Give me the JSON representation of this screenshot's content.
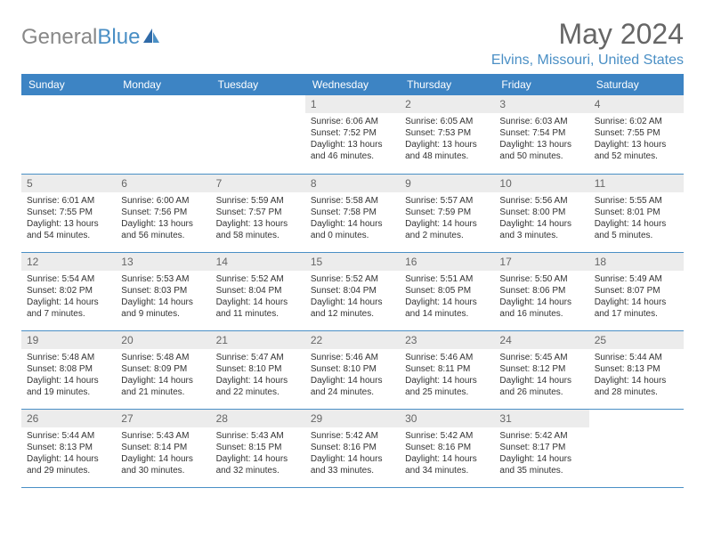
{
  "logo": {
    "text1": "General",
    "text2": "Blue"
  },
  "title": "May 2024",
  "location": "Elvins, Missouri, United States",
  "colors": {
    "header_bg": "#3d84c4",
    "header_text": "#ffffff",
    "accent": "#4a8fc5",
    "daynum_bg": "#ececec",
    "daynum_text": "#666666",
    "body_text": "#333333",
    "title_text": "#666666",
    "logo_gray": "#888888"
  },
  "weekdays": [
    "Sunday",
    "Monday",
    "Tuesday",
    "Wednesday",
    "Thursday",
    "Friday",
    "Saturday"
  ],
  "weeks": [
    [
      null,
      null,
      null,
      {
        "n": "1",
        "sr": "6:06 AM",
        "ss": "7:52 PM",
        "dl": "13 hours and 46 minutes."
      },
      {
        "n": "2",
        "sr": "6:05 AM",
        "ss": "7:53 PM",
        "dl": "13 hours and 48 minutes."
      },
      {
        "n": "3",
        "sr": "6:03 AM",
        "ss": "7:54 PM",
        "dl": "13 hours and 50 minutes."
      },
      {
        "n": "4",
        "sr": "6:02 AM",
        "ss": "7:55 PM",
        "dl": "13 hours and 52 minutes."
      }
    ],
    [
      {
        "n": "5",
        "sr": "6:01 AM",
        "ss": "7:55 PM",
        "dl": "13 hours and 54 minutes."
      },
      {
        "n": "6",
        "sr": "6:00 AM",
        "ss": "7:56 PM",
        "dl": "13 hours and 56 minutes."
      },
      {
        "n": "7",
        "sr": "5:59 AM",
        "ss": "7:57 PM",
        "dl": "13 hours and 58 minutes."
      },
      {
        "n": "8",
        "sr": "5:58 AM",
        "ss": "7:58 PM",
        "dl": "14 hours and 0 minutes."
      },
      {
        "n": "9",
        "sr": "5:57 AM",
        "ss": "7:59 PM",
        "dl": "14 hours and 2 minutes."
      },
      {
        "n": "10",
        "sr": "5:56 AM",
        "ss": "8:00 PM",
        "dl": "14 hours and 3 minutes."
      },
      {
        "n": "11",
        "sr": "5:55 AM",
        "ss": "8:01 PM",
        "dl": "14 hours and 5 minutes."
      }
    ],
    [
      {
        "n": "12",
        "sr": "5:54 AM",
        "ss": "8:02 PM",
        "dl": "14 hours and 7 minutes."
      },
      {
        "n": "13",
        "sr": "5:53 AM",
        "ss": "8:03 PM",
        "dl": "14 hours and 9 minutes."
      },
      {
        "n": "14",
        "sr": "5:52 AM",
        "ss": "8:04 PM",
        "dl": "14 hours and 11 minutes."
      },
      {
        "n": "15",
        "sr": "5:52 AM",
        "ss": "8:04 PM",
        "dl": "14 hours and 12 minutes."
      },
      {
        "n": "16",
        "sr": "5:51 AM",
        "ss": "8:05 PM",
        "dl": "14 hours and 14 minutes."
      },
      {
        "n": "17",
        "sr": "5:50 AM",
        "ss": "8:06 PM",
        "dl": "14 hours and 16 minutes."
      },
      {
        "n": "18",
        "sr": "5:49 AM",
        "ss": "8:07 PM",
        "dl": "14 hours and 17 minutes."
      }
    ],
    [
      {
        "n": "19",
        "sr": "5:48 AM",
        "ss": "8:08 PM",
        "dl": "14 hours and 19 minutes."
      },
      {
        "n": "20",
        "sr": "5:48 AM",
        "ss": "8:09 PM",
        "dl": "14 hours and 21 minutes."
      },
      {
        "n": "21",
        "sr": "5:47 AM",
        "ss": "8:10 PM",
        "dl": "14 hours and 22 minutes."
      },
      {
        "n": "22",
        "sr": "5:46 AM",
        "ss": "8:10 PM",
        "dl": "14 hours and 24 minutes."
      },
      {
        "n": "23",
        "sr": "5:46 AM",
        "ss": "8:11 PM",
        "dl": "14 hours and 25 minutes."
      },
      {
        "n": "24",
        "sr": "5:45 AM",
        "ss": "8:12 PM",
        "dl": "14 hours and 26 minutes."
      },
      {
        "n": "25",
        "sr": "5:44 AM",
        "ss": "8:13 PM",
        "dl": "14 hours and 28 minutes."
      }
    ],
    [
      {
        "n": "26",
        "sr": "5:44 AM",
        "ss": "8:13 PM",
        "dl": "14 hours and 29 minutes."
      },
      {
        "n": "27",
        "sr": "5:43 AM",
        "ss": "8:14 PM",
        "dl": "14 hours and 30 minutes."
      },
      {
        "n": "28",
        "sr": "5:43 AM",
        "ss": "8:15 PM",
        "dl": "14 hours and 32 minutes."
      },
      {
        "n": "29",
        "sr": "5:42 AM",
        "ss": "8:16 PM",
        "dl": "14 hours and 33 minutes."
      },
      {
        "n": "30",
        "sr": "5:42 AM",
        "ss": "8:16 PM",
        "dl": "14 hours and 34 minutes."
      },
      {
        "n": "31",
        "sr": "5:42 AM",
        "ss": "8:17 PM",
        "dl": "14 hours and 35 minutes."
      },
      null
    ]
  ],
  "labels": {
    "sunrise": "Sunrise: ",
    "sunset": "Sunset: ",
    "daylight": "Daylight: "
  }
}
